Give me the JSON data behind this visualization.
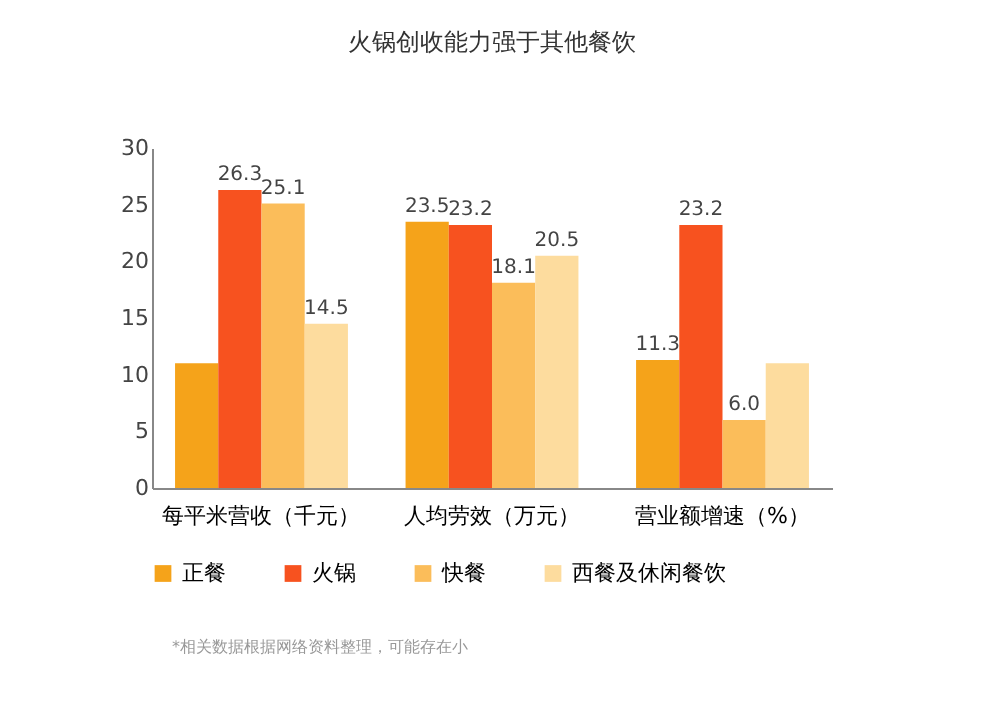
{
  "chart_data": {
    "type": "bar",
    "title": "火锅创收能力强于其他餐饮",
    "categories": [
      "每平米营收（千元）",
      "人均劳效（万元）",
      "营业额增速（%）"
    ],
    "series": [
      {
        "name": "正餐",
        "color": "#f5a31a",
        "values": [
          11,
          23.5,
          11.3
        ],
        "value_labels": [
          null,
          "23.5",
          "11.3"
        ]
      },
      {
        "name": "火锅",
        "color": "#f7521f",
        "values": [
          26.3,
          23.2,
          23.2
        ],
        "value_labels": [
          "26.3",
          "23.2",
          "23.2"
        ]
      },
      {
        "name": "快餐",
        "color": "#fbbd5a",
        "values": [
          25.1,
          18.1,
          6.0
        ],
        "value_labels": [
          "25.1",
          "18.1",
          "6.0"
        ]
      },
      {
        "name": "西餐及休闲餐饮",
        "color": "#fddc9e",
        "values": [
          14.5,
          20.5,
          11
        ],
        "value_labels": [
          "14.5",
          "20.5",
          null
        ]
      }
    ],
    "ylim": [
      0,
      30
    ],
    "yticks": [
      0,
      5,
      10,
      15,
      20,
      25,
      30
    ],
    "grid": false,
    "legend": "bottom",
    "annotations": [
      "*相关数据根据网络资料整理，可能存在小"
    ]
  }
}
